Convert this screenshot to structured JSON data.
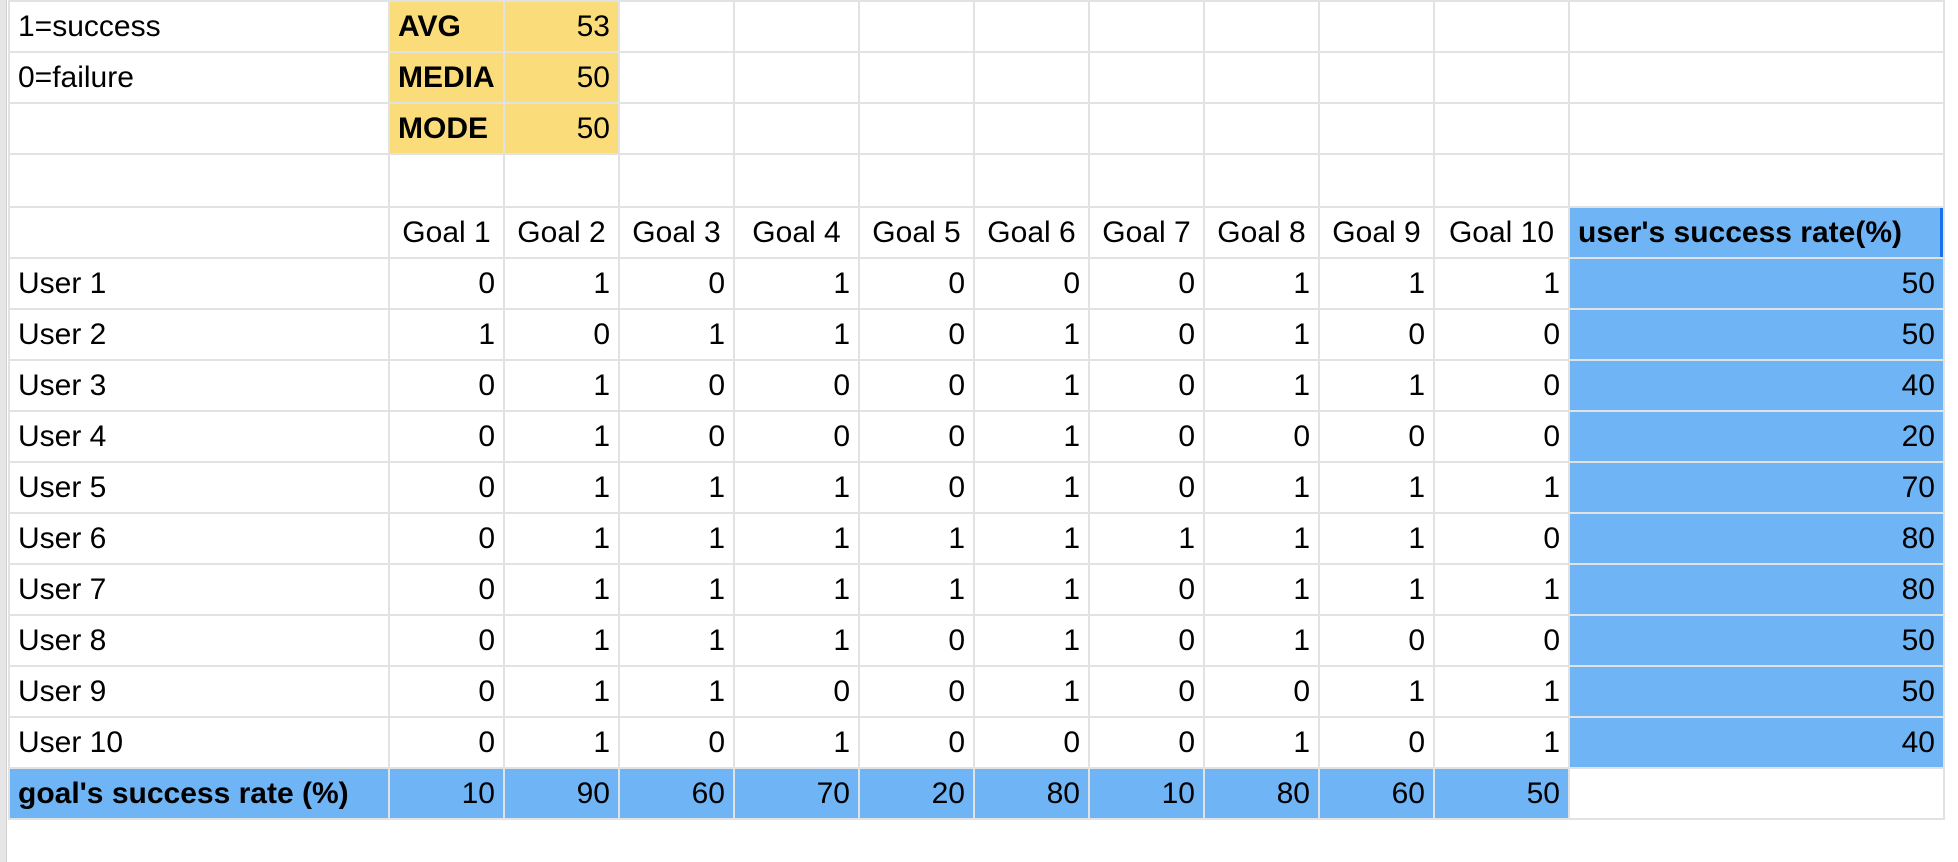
{
  "legend": {
    "success": "1=success",
    "failure": "0=failure"
  },
  "stats": [
    {
      "label": "AVG",
      "value": "53"
    },
    {
      "label": "MEDIA",
      "value": "50"
    },
    {
      "label": "MODE",
      "value": "50"
    }
  ],
  "goal_headers": [
    "Goal 1",
    "Goal 2",
    "Goal 3",
    "Goal 4",
    "Goal 5",
    "Goal 6",
    "Goal 7",
    "Goal 8",
    "Goal 9",
    "Goal 10"
  ],
  "user_rate_header": "user's success rate(%)",
  "users": [
    {
      "name": "User 1",
      "values": [
        "0",
        "1",
        "0",
        "1",
        "0",
        "0",
        "0",
        "1",
        "1",
        "1"
      ],
      "rate": "50"
    },
    {
      "name": "User 2",
      "values": [
        "1",
        "0",
        "1",
        "1",
        "0",
        "1",
        "0",
        "1",
        "0",
        "0"
      ],
      "rate": "50"
    },
    {
      "name": "User 3",
      "values": [
        "0",
        "1",
        "0",
        "0",
        "0",
        "1",
        "0",
        "1",
        "1",
        "0"
      ],
      "rate": "40"
    },
    {
      "name": "User 4",
      "values": [
        "0",
        "1",
        "0",
        "0",
        "0",
        "1",
        "0",
        "0",
        "0",
        "0"
      ],
      "rate": "20"
    },
    {
      "name": "User 5",
      "values": [
        "0",
        "1",
        "1",
        "1",
        "0",
        "1",
        "0",
        "1",
        "1",
        "1"
      ],
      "rate": "70"
    },
    {
      "name": "User 6",
      "values": [
        "0",
        "1",
        "1",
        "1",
        "1",
        "1",
        "1",
        "1",
        "1",
        "0"
      ],
      "rate": "80"
    },
    {
      "name": "User 7",
      "values": [
        "0",
        "1",
        "1",
        "1",
        "1",
        "1",
        "0",
        "1",
        "1",
        "1"
      ],
      "rate": "80"
    },
    {
      "name": "User 8",
      "values": [
        "0",
        "1",
        "1",
        "1",
        "0",
        "1",
        "0",
        "1",
        "0",
        "0"
      ],
      "rate": "50"
    },
    {
      "name": "User 9",
      "values": [
        "0",
        "1",
        "1",
        "0",
        "0",
        "1",
        "0",
        "0",
        "1",
        "1"
      ],
      "rate": "50"
    },
    {
      "name": "User 10",
      "values": [
        "0",
        "1",
        "0",
        "1",
        "0",
        "0",
        "0",
        "1",
        "0",
        "1"
      ],
      "rate": "40"
    }
  ],
  "goal_rate_label": "goal's success rate (%)",
  "goal_rates": [
    "10",
    "90",
    "60",
    "70",
    "20",
    "80",
    "10",
    "80",
    "60",
    "50"
  ],
  "colors": {
    "stats_fill": "#fbdc7b",
    "rate_fill": "#6fb5f6",
    "gridline": "#e2e2e2",
    "selection": "#1a73e8"
  }
}
